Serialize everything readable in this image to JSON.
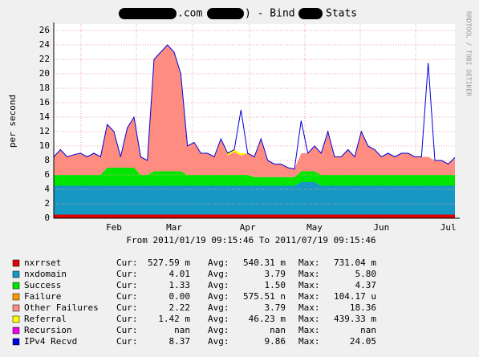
{
  "chart_data": {
    "type": "stacked_area",
    "title_parts": [
      ".com (",
      ") - Bind",
      "Stats"
    ],
    "side_label": "RRDTOOL / TOBI OETIKER",
    "y_label": "per second",
    "subtitle": "From 2011/01/19 09:15:46 To 2011/07/19 09:15:46",
    "stat_labels": [
      "Cur:",
      "Avg:",
      "Max:"
    ],
    "ylim": [
      0,
      26
    ],
    "yticks": [
      0,
      2,
      4,
      6,
      8,
      10,
      12,
      14,
      16,
      18,
      20,
      22,
      24,
      26
    ],
    "grid": true,
    "categories": [
      null,
      null,
      null,
      null,
      null,
      null,
      null,
      null,
      null,
      "Feb",
      null,
      null,
      null,
      null,
      null,
      null,
      null,
      null,
      "Mar",
      null,
      null,
      null,
      null,
      null,
      null,
      null,
      null,
      null,
      null,
      "Apr",
      null,
      null,
      null,
      null,
      null,
      null,
      null,
      null,
      null,
      "May",
      null,
      null,
      null,
      null,
      null,
      null,
      null,
      null,
      null,
      "Jun",
      null,
      null,
      null,
      null,
      null,
      null,
      null,
      null,
      null,
      "Jul",
      null
    ],
    "series": [
      {
        "name": "nxrrset",
        "color": "#e00000",
        "cur": "527.59 m",
        "avg": "540.31 m",
        "max": "731.04 m",
        "values": [
          0.5,
          0.5,
          0.5,
          0.5,
          0.5,
          0.5,
          0.5,
          0.5,
          0.5,
          0.5,
          0.5,
          0.5,
          0.5,
          0.5,
          0.5,
          0.5,
          0.5,
          0.5,
          0.5,
          0.5,
          0.5,
          0.5,
          0.5,
          0.5,
          0.5,
          0.5,
          0.5,
          0.5,
          0.5,
          0.5,
          0.5,
          0.5,
          0.5,
          0.5,
          0.5,
          0.5,
          0.5,
          0.5,
          0.5,
          0.5,
          0.5,
          0.5,
          0.5,
          0.5,
          0.5,
          0.5,
          0.5,
          0.5,
          0.5,
          0.5,
          0.5,
          0.5,
          0.5,
          0.5,
          0.5,
          0.5,
          0.5,
          0.5,
          0.5,
          0.5,
          0.5
        ]
      },
      {
        "name": "nxdomain",
        "color": "#1598c3",
        "cur": "4.01",
        "avg": "3.79",
        "max": "5.80",
        "values": [
          4,
          4,
          4,
          4,
          4,
          4,
          4,
          4,
          4,
          4,
          4,
          4,
          4,
          4,
          4,
          4,
          4,
          4,
          4,
          4,
          4,
          4,
          4,
          4,
          4,
          4,
          4,
          4,
          4,
          4,
          4,
          4,
          4,
          4,
          4,
          4,
          4,
          4.5,
          4.5,
          4.5,
          4,
          4,
          4,
          4,
          4,
          4,
          4,
          4,
          4,
          4,
          4,
          4,
          4,
          4,
          4,
          4,
          4,
          4,
          4,
          4,
          4
        ]
      },
      {
        "name": "Success",
        "color": "#00e600",
        "cur": "1.33",
        "avg": "1.50",
        "max": "4.37",
        "values": [
          1.5,
          1.5,
          1.5,
          1.5,
          1.5,
          1.5,
          1.5,
          1.5,
          2.5,
          2.5,
          2.5,
          2.5,
          2.5,
          1.5,
          1.5,
          2,
          2,
          2,
          2,
          2,
          1.5,
          1.5,
          1.5,
          1.5,
          1.5,
          1.5,
          1.5,
          1.5,
          1.5,
          1.5,
          1.2,
          1.2,
          1.2,
          1.2,
          1.2,
          1.2,
          1.2,
          1.5,
          1.5,
          1.5,
          1.5,
          1.5,
          1.5,
          1.5,
          1.5,
          1.5,
          1.5,
          1.5,
          1.5,
          1.5,
          1.5,
          1.5,
          1.5,
          1.5,
          1.5,
          1.5,
          1.5,
          1.5,
          1.5,
          1.5,
          1.5
        ]
      },
      {
        "name": "Failure",
        "color": "#ff9900",
        "cur": "0.00",
        "avg": "575.51 n",
        "max": "104.17 u",
        "values": [
          0,
          0,
          0,
          0,
          0,
          0,
          0,
          0,
          0,
          0,
          0,
          0,
          0,
          0,
          0,
          0,
          0,
          0,
          0,
          0,
          0,
          0,
          0,
          0,
          0,
          0,
          0,
          0,
          0,
          0,
          0,
          0,
          0,
          0,
          0,
          0,
          0,
          0,
          0,
          0,
          0,
          0,
          0,
          0,
          0,
          0,
          0,
          0,
          0,
          0,
          0,
          0,
          0,
          0,
          0,
          0,
          0,
          0,
          0,
          0,
          0
        ]
      },
      {
        "name": "Other Failures",
        "color": "#ff8c80",
        "cur": "2.22",
        "avg": "3.79",
        "max": "18.36",
        "values": [
          2.5,
          3.5,
          2.5,
          2.8,
          3,
          2.5,
          3,
          2.5,
          6,
          5,
          1.5,
          5.5,
          7,
          2.5,
          2,
          15.5,
          16.5,
          17.5,
          16.5,
          13.5,
          4,
          4.5,
          3,
          3,
          2.5,
          5,
          2.7,
          3.2,
          2.7,
          3,
          2.8,
          5.3,
          2.3,
          1.8,
          1.8,
          1.3,
          1.1,
          2.5,
          2.5,
          3.5,
          3,
          6,
          2.5,
          2.5,
          3.5,
          2.5,
          6,
          4,
          3.5,
          2.5,
          3,
          2.5,
          3,
          3,
          2.5,
          2.5,
          2.5,
          2,
          2,
          1.5,
          2.4
        ]
      },
      {
        "name": "Referral",
        "color": "#ffff00",
        "cur": "1.42 m",
        "avg": "46.23 m",
        "max": "439.33 m",
        "values": [
          0,
          0,
          0,
          0,
          0,
          0,
          0,
          0,
          0,
          0,
          0,
          0,
          0,
          0,
          0,
          0,
          0,
          0,
          0,
          0,
          0,
          0,
          0,
          0,
          0,
          0,
          0.3,
          0.3,
          0.3,
          0,
          0,
          0,
          0,
          0,
          0,
          0,
          0,
          0,
          0,
          0,
          0,
          0,
          0,
          0,
          0,
          0,
          0,
          0,
          0,
          0,
          0,
          0,
          0,
          0,
          0,
          0,
          0,
          0,
          0,
          0,
          0
        ]
      },
      {
        "name": "Recursion",
        "color": "#ee00ee",
        "cur": "nan",
        "avg": "nan",
        "max": "nan",
        "values": [
          null,
          null,
          null,
          null,
          null,
          null,
          null,
          null,
          null,
          null,
          null,
          null,
          null,
          null,
          null,
          null,
          null,
          null,
          null,
          null,
          null,
          null,
          null,
          null,
          null,
          null,
          null,
          null,
          null,
          null,
          null,
          null,
          null,
          null,
          null,
          null,
          null,
          null,
          null,
          null,
          null,
          null,
          null,
          null,
          null,
          null,
          null,
          null,
          null,
          null,
          null,
          null,
          null,
          null,
          null,
          null,
          null,
          null,
          null,
          null,
          null
        ]
      },
      {
        "name": "IPv4 Recvd",
        "color": "#0000dd",
        "line": true,
        "cur": "8.37",
        "avg": "9.86",
        "max": "24.05",
        "values": [
          8.5,
          9.5,
          8.5,
          8.8,
          9,
          8.5,
          9,
          8.5,
          13,
          12,
          8.5,
          12.5,
          14,
          8.5,
          8,
          22,
          23,
          24,
          23,
          20,
          10,
          10.5,
          9,
          9,
          8.5,
          11,
          9,
          9.5,
          15,
          9,
          8.5,
          11,
          8,
          7.5,
          7.5,
          7,
          6.8,
          13.5,
          9,
          10,
          9,
          12,
          8.5,
          8.5,
          9.5,
          8.5,
          12,
          10,
          9.5,
          8.5,
          9,
          8.5,
          9,
          9,
          8.5,
          8.5,
          21.5,
          8,
          8,
          7.5,
          8.4
        ]
      }
    ]
  }
}
